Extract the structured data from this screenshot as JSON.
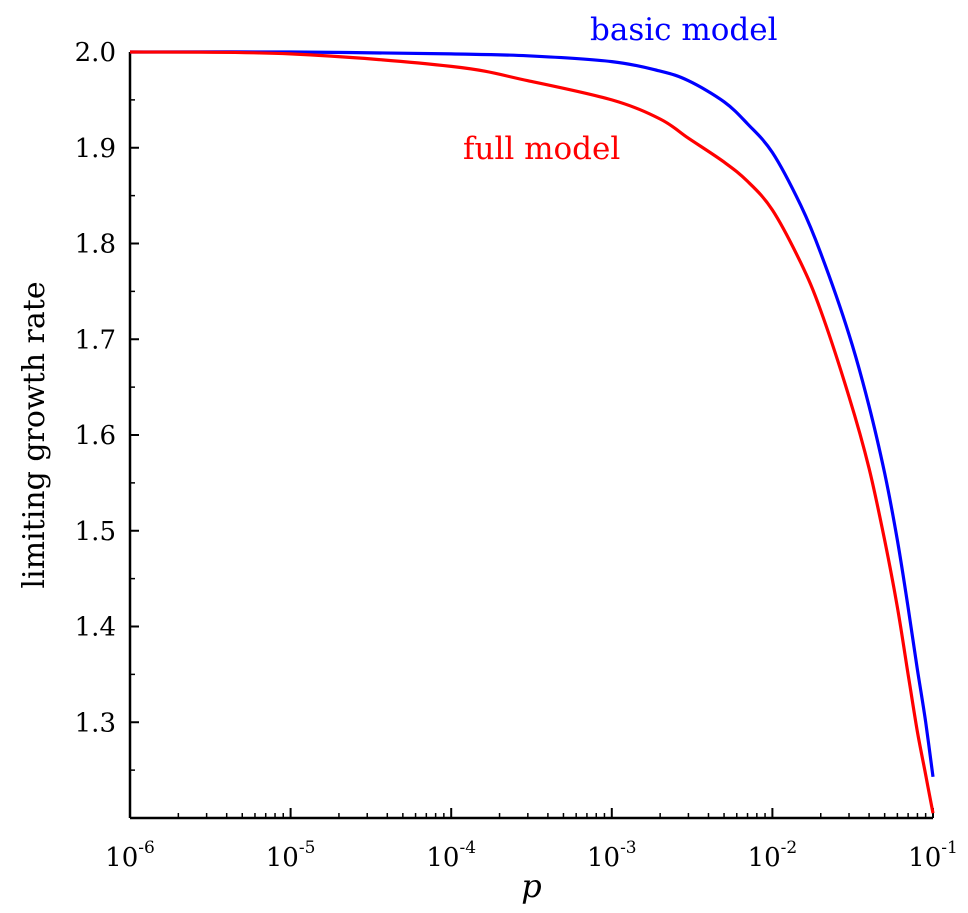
{
  "chart_data": {
    "type": "line",
    "title": "",
    "xlabel": "p",
    "ylabel": "limiting growth rate",
    "x_scale": "log",
    "xlim": [
      1e-06,
      0.1
    ],
    "ylim": [
      1.2,
      2.0
    ],
    "grid": false,
    "x_ticks": [
      {
        "base": "10",
        "exp": "-6",
        "value": 1e-06
      },
      {
        "base": "10",
        "exp": "-5",
        "value": 1e-05
      },
      {
        "base": "10",
        "exp": "-4",
        "value": 0.0001
      },
      {
        "base": "10",
        "exp": "-3",
        "value": 0.001
      },
      {
        "base": "10",
        "exp": "-2",
        "value": 0.01
      },
      {
        "base": "10",
        "exp": "-1",
        "value": 0.1
      }
    ],
    "y_ticks": [
      "2.0",
      "1.9",
      "1.8",
      "1.7",
      "1.6",
      "1.5",
      "1.4",
      "1.3"
    ],
    "series": [
      {
        "name": "basic model",
        "color": "#0000ff",
        "x": [
          1e-06,
          1e-05,
          0.0001,
          0.0003,
          0.001,
          0.002,
          0.003,
          0.005,
          0.007,
          0.01,
          0.015,
          0.02,
          0.03,
          0.04,
          0.05,
          0.06,
          0.07,
          0.08,
          0.09,
          0.1
        ],
        "y": [
          2.0,
          2.0,
          1.998,
          1.996,
          1.99,
          1.98,
          1.97,
          1.948,
          1.925,
          1.895,
          1.84,
          1.79,
          1.705,
          1.63,
          1.56,
          1.49,
          1.42,
          1.355,
          1.3,
          1.243
        ]
      },
      {
        "name": "full model",
        "color": "#ff0000",
        "x": [
          1e-06,
          1e-05,
          0.0001,
          0.0003,
          0.001,
          0.002,
          0.003,
          0.005,
          0.007,
          0.01,
          0.015,
          0.02,
          0.03,
          0.04,
          0.05,
          0.06,
          0.07,
          0.08,
          0.09,
          0.1
        ],
        "y": [
          2.0,
          1.998,
          1.985,
          1.97,
          1.95,
          1.93,
          1.91,
          1.885,
          1.865,
          1.835,
          1.78,
          1.73,
          1.64,
          1.565,
          1.49,
          1.42,
          1.35,
          1.29,
          1.245,
          1.205
        ]
      }
    ]
  }
}
